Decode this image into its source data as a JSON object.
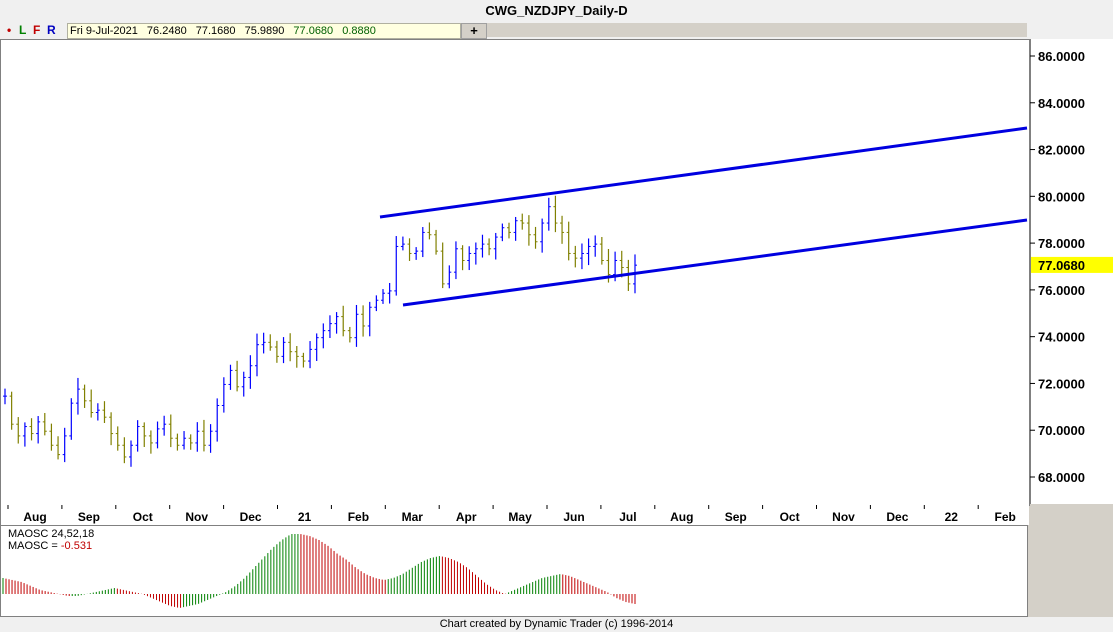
{
  "window": {
    "title": "CWG_NZDJPY_Daily-D"
  },
  "toolbar": {
    "dot": "•",
    "l": "L",
    "f": "F",
    "r": "R",
    "plus": "+",
    "ohlc": {
      "date": "Fri 9-Jul-2021",
      "open": "76.2480",
      "high": "77.1680",
      "low": "75.9890",
      "close": "77.0680",
      "change": "0.8880"
    }
  },
  "price_axis": {
    "labels": [
      "86.0000",
      "84.0000",
      "82.0000",
      "80.0000",
      "78.0000",
      "76.0000",
      "74.0000",
      "72.0000",
      "70.0000",
      "68.0000"
    ],
    "current_label": "77.0680",
    "current_color": "#ffff00"
  },
  "time_axis": {
    "labels": [
      "Aug",
      "Sep",
      "Oct",
      "Nov",
      "Dec",
      "21",
      "Feb",
      "Mar",
      "Apr",
      "May",
      "Jun",
      "Jul",
      "Aug",
      "Sep",
      "Oct",
      "Nov",
      "Dec",
      "22",
      "Feb"
    ]
  },
  "oscillator": {
    "name": "MAOSC 24,52,18",
    "value_prefix": "MAOSC = ",
    "value": "-0.531",
    "pos_color": "#008000",
    "neg_color": "#c00000"
  },
  "footer": {
    "text": "Chart created by Dynamic Trader  (c) 1996-2014"
  },
  "colors": {
    "up_bar": "#0000ff",
    "down_bar": "#808000",
    "channel": "#0000e0"
  },
  "chart_data": {
    "type": "line",
    "title": "CWG_NZDJPY_Daily-D",
    "ylim": [
      67.0,
      86.8
    ],
    "y_ticks": [
      86,
      84,
      82,
      80,
      78,
      76,
      74,
      72,
      70,
      68
    ],
    "series": [
      {
        "values": [
          71.5,
          70.3,
          69.8,
          70.2,
          69.9,
          70.4,
          70.0,
          69.4,
          69.0,
          69.8,
          71.2,
          71.8,
          71.3,
          70.8,
          70.9,
          70.6,
          69.9,
          69.4,
          68.9,
          69.4,
          70.2,
          69.8,
          69.5,
          70.1,
          70.3,
          69.7,
          69.4,
          69.7,
          69.5,
          70.0,
          69.4,
          70.0,
          71.1,
          72.0,
          72.6,
          71.9,
          72.3,
          72.8,
          73.7,
          73.8,
          73.6,
          73.2,
          73.8,
          73.4,
          73.2,
          73.0,
          73.5,
          74.0,
          74.3,
          74.6,
          74.9,
          74.3,
          74.0,
          75.0,
          74.5,
          75.3,
          75.6,
          75.9,
          76.0,
          77.9,
          78.0,
          77.6,
          77.7,
          78.5,
          78.4,
          77.7,
          76.3,
          76.8,
          77.8,
          77.3,
          77.6,
          77.8,
          78.0,
          77.8,
          78.3,
          78.7,
          78.5,
          79.0,
          78.9,
          78.4,
          78.1,
          78.9,
          79.6,
          78.9,
          78.5,
          77.6,
          77.4,
          77.6,
          77.9,
          78.0,
          77.3,
          76.7,
          77.3,
          77.0,
          76.3,
          77.1
        ]
      },
      {
        "name": "MAOSC 24,52,18",
        "values": [
          0.8,
          0.7,
          0.6,
          0.4,
          0.2,
          0.1,
          0.0,
          -0.1,
          -0.1,
          0.0,
          0.1,
          0.2,
          0.3,
          0.2,
          0.1,
          0.0,
          -0.2,
          -0.4,
          -0.6,
          -0.7,
          -0.6,
          -0.5,
          -0.3,
          -0.1,
          0.1,
          0.4,
          0.8,
          1.3,
          1.8,
          2.3,
          2.7,
          3.0,
          3.0,
          2.9,
          2.7,
          2.4,
          2.0,
          1.7,
          1.3,
          1.0,
          0.8,
          0.7,
          0.8,
          1.0,
          1.3,
          1.6,
          1.8,
          1.9,
          1.8,
          1.6,
          1.3,
          0.9,
          0.5,
          0.2,
          0.0,
          0.2,
          0.4,
          0.6,
          0.8,
          0.9,
          1.0,
          0.9,
          0.7,
          0.5,
          0.3,
          0.1,
          -0.2,
          -0.4,
          -0.5
        ]
      }
    ]
  }
}
